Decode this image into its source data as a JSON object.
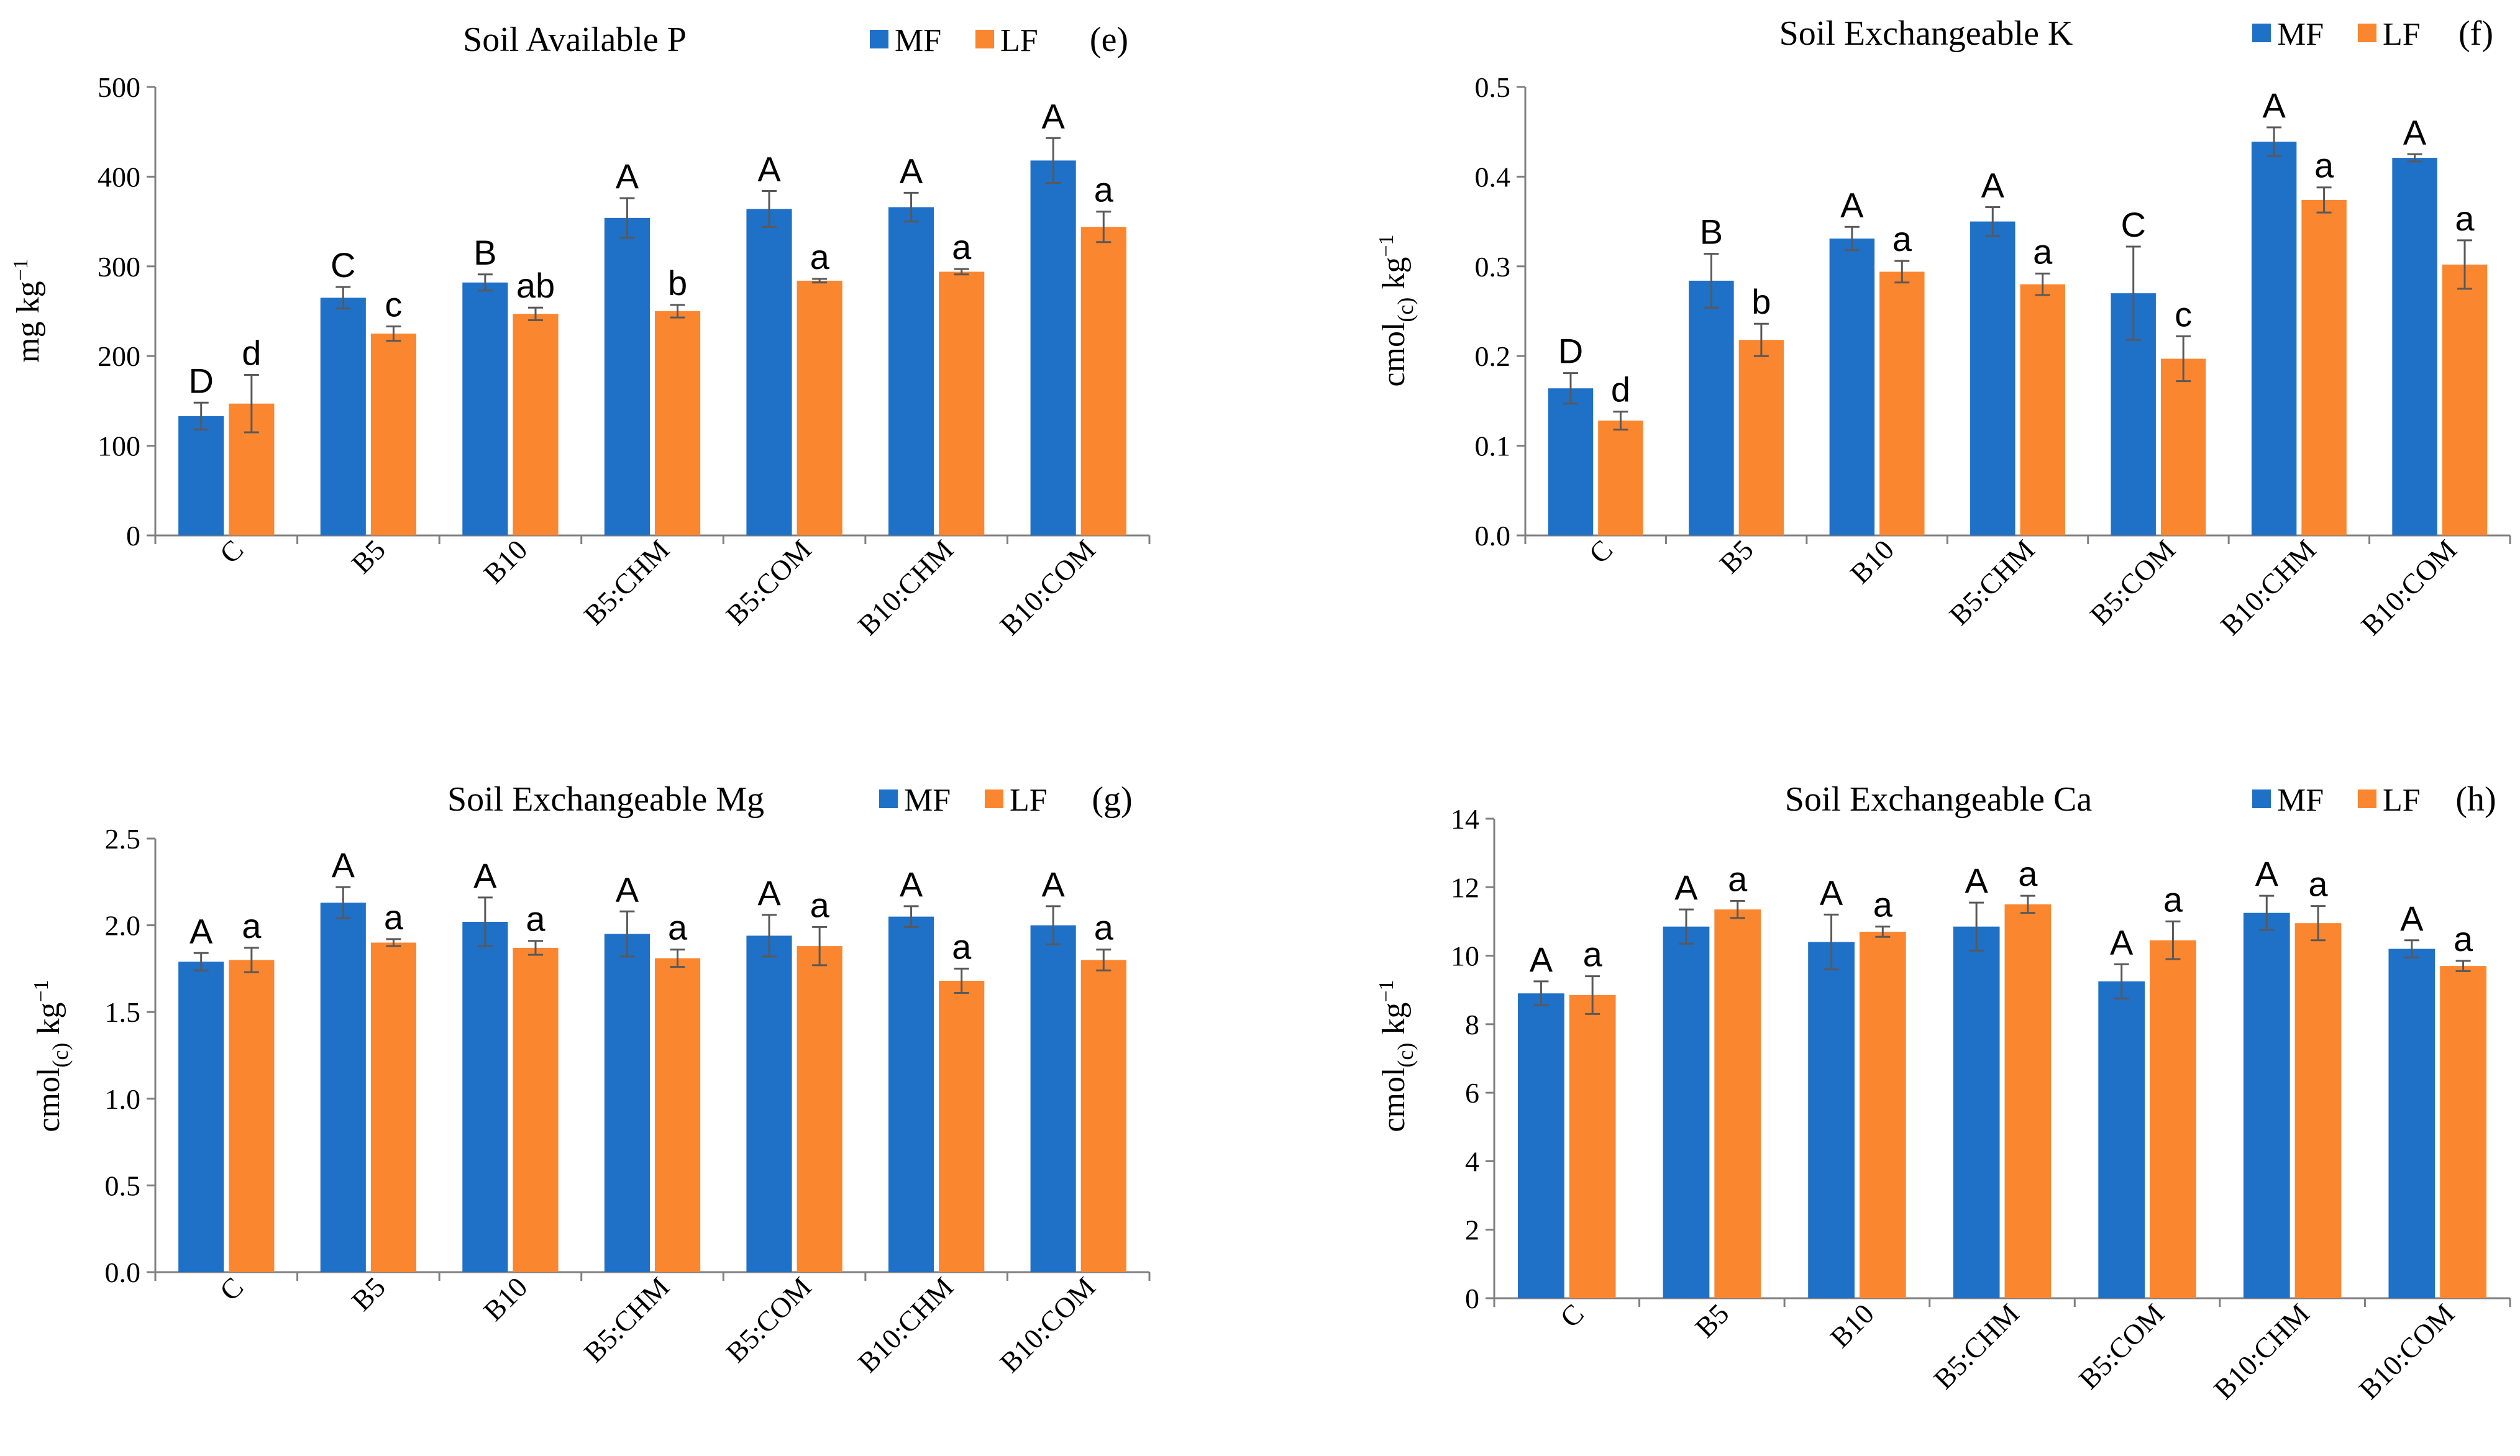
{
  "colors": {
    "MF": "#1f70c7",
    "LF": "#fb8630",
    "axis": "#808080",
    "error": "#595959"
  },
  "chart_data": [
    {
      "type": "bar",
      "panel": "(e)",
      "title": "Soil Available P",
      "ylabel_main": "mg kg",
      "ylabel_sub": "",
      "ylabel_tail": " kg",
      "ylabel_sup": "−1",
      "ylim": [
        0,
        500
      ],
      "yticks": [
        0,
        100,
        200,
        300,
        400,
        500
      ],
      "ytick_labels": [
        "0",
        "100",
        "200",
        "300",
        "400",
        "500"
      ],
      "categories": [
        "C",
        "B5",
        "B10",
        "B5:CHM",
        "B5:COM",
        "B10:CHM",
        "B10:COM"
      ],
      "series": [
        {
          "name": "MF",
          "values": [
            133,
            265,
            282,
            354,
            364,
            366,
            418
          ],
          "errors": [
            15,
            12,
            9,
            22,
            20,
            16,
            25
          ],
          "labels": [
            "D",
            "C",
            "B",
            "A",
            "A",
            "A",
            "A"
          ]
        },
        {
          "name": "LF",
          "values": [
            147,
            225,
            247,
            250,
            284,
            294,
            344
          ],
          "errors": [
            32,
            8,
            7,
            7,
            2,
            3,
            17
          ],
          "labels": [
            "d",
            "c",
            "ab",
            "b",
            "a",
            "a",
            "a"
          ]
        }
      ]
    },
    {
      "type": "bar",
      "panel": "(f)",
      "title": "Soil Exchangeable K",
      "ylabel_main": "cmol",
      "ylabel_sub": "(c)",
      "ylabel_tail": " kg",
      "ylabel_sup": "−1",
      "ylim": [
        0,
        0.5
      ],
      "yticks": [
        0,
        0.1,
        0.2,
        0.3,
        0.4,
        0.5
      ],
      "ytick_labels": [
        "0.0",
        "0.1",
        "0.2",
        "0.3",
        "0.4",
        "0.5"
      ],
      "categories": [
        "C",
        "B5",
        "B10",
        "B5:CHM",
        "B5:COM",
        "B10:CHM",
        "B10:COM"
      ],
      "series": [
        {
          "name": "MF",
          "values": [
            0.164,
            0.284,
            0.331,
            0.35,
            0.27,
            0.439,
            0.421
          ],
          "errors": [
            0.017,
            0.03,
            0.013,
            0.016,
            0.052,
            0.016,
            0.004
          ],
          "labels": [
            "D",
            "B",
            "A",
            "A",
            "C",
            "A",
            "A"
          ]
        },
        {
          "name": "LF",
          "values": [
            0.128,
            0.218,
            0.294,
            0.28,
            0.197,
            0.374,
            0.302
          ],
          "errors": [
            0.01,
            0.018,
            0.012,
            0.012,
            0.025,
            0.014,
            0.027
          ],
          "labels": [
            "d",
            "b",
            "a",
            "a",
            "c",
            "a",
            "a"
          ]
        }
      ]
    },
    {
      "type": "bar",
      "panel": "(g)",
      "title": "Soil Exchangeable  Mg",
      "ylabel_main": "cmol",
      "ylabel_sub": "(c)",
      "ylabel_tail": " kg",
      "ylabel_sup": "−1",
      "ylim": [
        0,
        2.5
      ],
      "yticks": [
        0,
        0.5,
        1,
        1.5,
        2,
        2.5
      ],
      "ytick_labels": [
        "0.0",
        "0.5",
        "1.0",
        "1.5",
        "2.0",
        "2.5"
      ],
      "categories": [
        "C",
        "B5",
        "B10",
        "B5:CHM",
        "B5:COM",
        "B10:CHM",
        "B10:COM"
      ],
      "series": [
        {
          "name": "MF",
          "values": [
            1.79,
            2.13,
            2.02,
            1.95,
            1.94,
            2.05,
            2.0
          ],
          "errors": [
            0.05,
            0.09,
            0.14,
            0.13,
            0.12,
            0.06,
            0.11
          ],
          "labels": [
            "A",
            "A",
            "A",
            "A",
            "A",
            "A",
            "A"
          ]
        },
        {
          "name": "LF",
          "values": [
            1.8,
            1.9,
            1.87,
            1.81,
            1.88,
            1.68,
            1.8
          ],
          "errors": [
            0.07,
            0.02,
            0.04,
            0.05,
            0.11,
            0.07,
            0.06
          ],
          "labels": [
            "a",
            "a",
            "a",
            "a",
            "a",
            "a",
            "a"
          ]
        }
      ]
    },
    {
      "type": "bar",
      "panel": "(h)",
      "title": "Soil Exchangeable  Ca",
      "ylabel_main": "cmol",
      "ylabel_sub": "(c)",
      "ylabel_tail": " kg",
      "ylabel_sup": "−1",
      "ylim": [
        0,
        14
      ],
      "yticks": [
        0,
        2,
        4,
        6,
        8,
        10,
        12,
        14
      ],
      "ytick_labels": [
        "0",
        "2",
        "4",
        "6",
        "8",
        "10",
        "12",
        "14"
      ],
      "categories": [
        "C",
        "B5",
        "B10",
        "B5:CHM",
        "B5:COM",
        "B10:CHM",
        "B10:COM"
      ],
      "series": [
        {
          "name": "MF",
          "values": [
            8.9,
            10.85,
            10.4,
            10.85,
            9.25,
            11.25,
            10.2
          ],
          "errors": [
            0.35,
            0.5,
            0.8,
            0.7,
            0.5,
            0.5,
            0.25
          ],
          "labels": [
            "A",
            "A",
            "A",
            "A",
            "A",
            "A",
            "A"
          ]
        },
        {
          "name": "LF",
          "values": [
            8.85,
            11.35,
            10.7,
            11.5,
            10.45,
            10.95,
            9.7
          ],
          "errors": [
            0.55,
            0.25,
            0.15,
            0.25,
            0.55,
            0.5,
            0.15
          ],
          "labels": [
            "a",
            "a",
            "a",
            "a",
            "a",
            "a",
            "a"
          ]
        }
      ]
    }
  ]
}
